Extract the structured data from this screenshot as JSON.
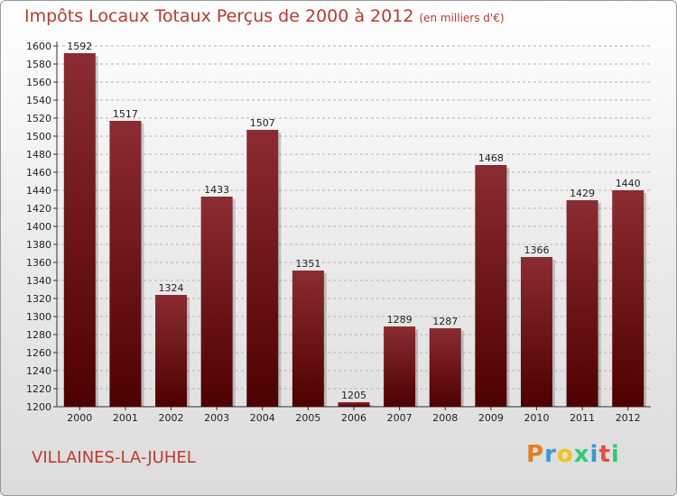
{
  "chart_data": {
    "type": "bar",
    "title": "Impôts Locaux Totaux Perçus de 2000 à 2012",
    "subtitle": "(en milliers d'€)",
    "categories": [
      "2000",
      "2001",
      "2002",
      "2003",
      "2004",
      "2005",
      "2006",
      "2007",
      "2008",
      "2009",
      "2010",
      "2011",
      "2012"
    ],
    "values": [
      1592,
      1517,
      1324,
      1433,
      1507,
      1351,
      1205,
      1289,
      1287,
      1468,
      1366,
      1429,
      1440
    ],
    "ylim": [
      1200,
      1600
    ],
    "yticks": [
      1200,
      1220,
      1240,
      1260,
      1280,
      1300,
      1320,
      1340,
      1360,
      1380,
      1400,
      1420,
      1440,
      1460,
      1480,
      1500,
      1520,
      1540,
      1560,
      1580,
      1600
    ],
    "grid": true,
    "bar_color_top": "#8b2c32",
    "bar_color_bottom": "#4e0000",
    "xlabel": "",
    "ylabel": ""
  },
  "footer": {
    "commune": "VILLAINES-LA-JUHEL",
    "logo_text": "Proxiti"
  },
  "colors": {
    "title": "#c0392b",
    "grid": "#b5b5b5"
  }
}
